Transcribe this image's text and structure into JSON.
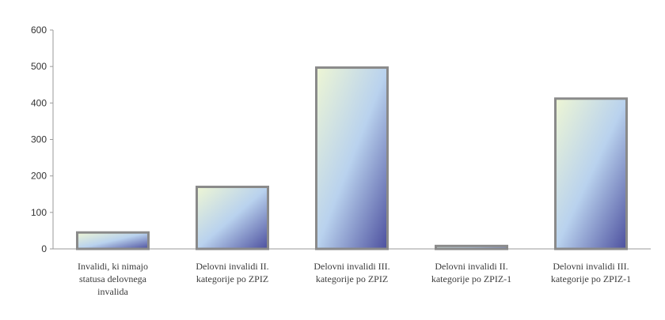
{
  "chart_data": {
    "type": "bar",
    "title": "",
    "xlabel": "",
    "ylabel": "",
    "ylim": [
      0,
      600
    ],
    "yticks": [
      0,
      100,
      200,
      300,
      400,
      500,
      600
    ],
    "grid": false,
    "legend": "none",
    "categories": [
      [
        "Invalidi, ki nimajo",
        "statusa delovnega",
        "invalida"
      ],
      [
        "Delovni invalidi II.",
        "kategorije po ZPIZ"
      ],
      [
        "Delovni invalidi III.",
        "kategorije po ZPIZ"
      ],
      [
        "Delovni invalidi II.",
        "kategorije po ZPIZ-1"
      ],
      [
        "Delovni invalidi III.",
        "kategorije po ZPIZ-1"
      ]
    ],
    "values": [
      45,
      170,
      497,
      8,
      412
    ],
    "colors": {
      "gradient_light": "#eef6d4",
      "gradient_mid": "#b9d2ee",
      "gradient_dark": "#4c4f9e",
      "bar_border": "#8a8a8a",
      "axis": "#9a9a9a"
    }
  }
}
